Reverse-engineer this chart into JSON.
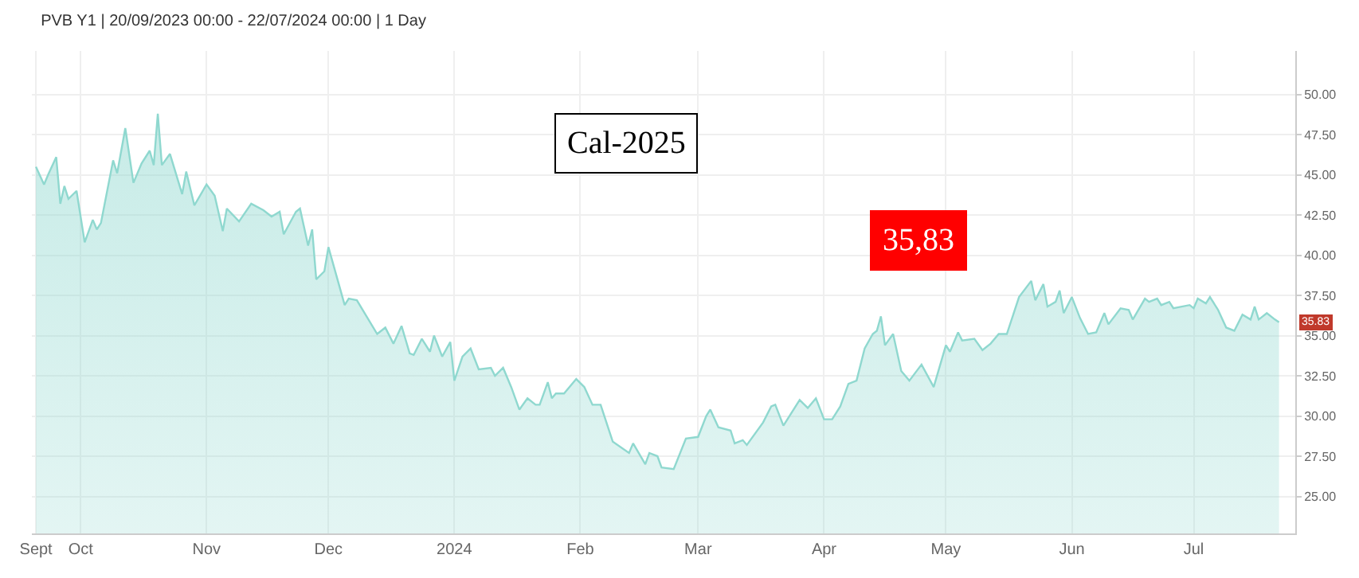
{
  "chart_data": {
    "type": "area",
    "title": "PVB Y1 | 20/09/2023 00:00 - 22/07/2024 00:00 | 1 Day",
    "x": [
      "2023-09-20",
      "2023-09-22",
      "2023-09-23",
      "2023-09-25",
      "2023-09-26",
      "2023-09-27",
      "2023-09-28",
      "2023-09-30",
      "2023-10-02",
      "2023-10-04",
      "2023-10-05",
      "2023-10-06",
      "2023-10-09",
      "2023-10-10",
      "2023-10-12",
      "2023-10-14",
      "2023-10-16",
      "2023-10-18",
      "2023-10-19",
      "2023-10-20",
      "2023-10-21",
      "2023-10-23",
      "2023-10-26",
      "2023-10-27",
      "2023-10-29",
      "2023-11-01",
      "2023-11-03",
      "2023-11-05",
      "2023-11-06",
      "2023-11-09",
      "2023-11-12",
      "2023-11-15",
      "2023-11-17",
      "2023-11-19",
      "2023-11-20",
      "2023-11-23",
      "2023-11-24",
      "2023-11-26",
      "2023-11-27",
      "2023-11-28",
      "2023-11-30",
      "2023-12-01",
      "2023-12-05",
      "2023-12-06",
      "2023-12-08",
      "2023-12-13",
      "2023-12-15",
      "2023-12-17",
      "2023-12-19",
      "2023-12-21",
      "2023-12-22",
      "2023-12-24",
      "2023-12-26",
      "2023-12-27",
      "2023-12-29",
      "2023-12-31",
      "2024-01-01",
      "2024-01-03",
      "2024-01-05",
      "2024-01-07",
      "2024-01-10",
      "2024-01-11",
      "2024-01-13",
      "2024-01-15",
      "2024-01-17",
      "2024-01-19",
      "2024-01-21",
      "2024-01-22",
      "2024-01-24",
      "2024-01-25",
      "2024-01-26",
      "2024-01-28",
      "2024-01-31",
      "2024-02-02",
      "2024-02-04",
      "2024-02-06",
      "2024-02-09",
      "2024-02-13",
      "2024-02-14",
      "2024-02-17",
      "2024-02-18",
      "2024-02-20",
      "2024-02-21",
      "2024-02-24",
      "2024-02-27",
      "2024-03-01",
      "2024-03-03",
      "2024-03-04",
      "2024-03-06",
      "2024-03-09",
      "2024-03-10",
      "2024-03-12",
      "2024-03-13",
      "2024-03-17",
      "2024-03-19",
      "2024-03-20",
      "2024-03-22",
      "2024-03-26",
      "2024-03-28",
      "2024-03-30",
      "2024-04-01",
      "2024-04-03",
      "2024-04-05",
      "2024-04-07",
      "2024-04-09",
      "2024-04-11",
      "2024-04-13",
      "2024-04-14",
      "2024-04-15",
      "2024-04-16",
      "2024-04-18",
      "2024-04-20",
      "2024-04-22",
      "2024-04-25",
      "2024-04-28",
      "2024-05-01",
      "2024-05-02",
      "2024-05-04",
      "2024-05-05",
      "2024-05-08",
      "2024-05-10",
      "2024-05-12",
      "2024-05-14",
      "2024-05-16",
      "2024-05-19",
      "2024-05-22",
      "2024-05-23",
      "2024-05-25",
      "2024-05-26",
      "2024-05-28",
      "2024-05-29",
      "2024-05-30",
      "2024-06-01",
      "2024-06-03",
      "2024-06-05",
      "2024-06-07",
      "2024-06-09",
      "2024-06-10",
      "2024-06-13",
      "2024-06-15",
      "2024-06-16",
      "2024-06-19",
      "2024-06-20",
      "2024-06-22",
      "2024-06-23",
      "2024-06-25",
      "2024-06-26",
      "2024-06-30",
      "2024-07-01",
      "2024-07-02",
      "2024-07-04",
      "2024-07-05",
      "2024-07-07",
      "2024-07-09",
      "2024-07-11",
      "2024-07-13",
      "2024-07-15",
      "2024-07-16",
      "2024-07-17",
      "2024-07-19",
      "2024-07-21",
      "2024-07-22"
    ],
    "series": [
      {
        "color": "#8fd8cf",
        "values": [
          45.5,
          44.4,
          45.0,
          46.1,
          43.2,
          44.3,
          43.5,
          44.0,
          40.8,
          42.2,
          41.6,
          42.0,
          45.9,
          45.1,
          47.9,
          44.5,
          45.7,
          46.5,
          45.6,
          48.8,
          45.6,
          46.3,
          43.8,
          45.2,
          43.1,
          44.4,
          43.7,
          41.5,
          42.9,
          42.1,
          43.2,
          42.8,
          42.4,
          42.7,
          41.3,
          42.7,
          42.9,
          40.6,
          41.6,
          38.5,
          39.0,
          40.5,
          36.9,
          37.3,
          37.2,
          35.1,
          35.5,
          34.5,
          35.6,
          33.9,
          33.8,
          34.8,
          34.0,
          35.0,
          33.7,
          34.6,
          32.2,
          33.7,
          34.2,
          32.9,
          33.0,
          32.5,
          33.0,
          31.8,
          30.4,
          31.1,
          30.7,
          30.7,
          32.1,
          31.1,
          31.4,
          31.4,
          32.3,
          31.8,
          30.7,
          30.7,
          28.4,
          27.7,
          28.3,
          27.0,
          27.7,
          27.5,
          26.8,
          26.7,
          28.6,
          28.7,
          30.0,
          30.4,
          29.3,
          29.1,
          28.3,
          28.5,
          28.2,
          29.6,
          30.6,
          30.7,
          29.4,
          31.0,
          30.5,
          31.1,
          29.8,
          29.8,
          30.6,
          32.0,
          32.2,
          34.2,
          35.1,
          35.3,
          36.2,
          34.4,
          35.1,
          32.8,
          32.2,
          33.2,
          31.8,
          34.4,
          34.0,
          35.2,
          34.7,
          34.8,
          34.1,
          34.5,
          35.1,
          35.1,
          37.4,
          38.4,
          37.2,
          38.2,
          36.8,
          37.1,
          37.8,
          36.4,
          37.4,
          36.1,
          35.1,
          35.2,
          36.4,
          35.7,
          36.7,
          36.6,
          36.0,
          37.3,
          37.1,
          37.3,
          36.9,
          37.1,
          36.7,
          36.9,
          36.7,
          37.3,
          37.0,
          37.4,
          36.6,
          35.5,
          35.3,
          36.3,
          36.0,
          36.8,
          36.0,
          36.4,
          36.0,
          35.83
        ]
      }
    ],
    "xlim": [
      "2023-09-19",
      "2024-07-26"
    ],
    "xticks": [
      {
        "value": "2023-09-20",
        "label": "Sept"
      },
      {
        "value": "2023-10-01",
        "label": "Oct"
      },
      {
        "value": "2023-11-01",
        "label": "Nov"
      },
      {
        "value": "2023-12-01",
        "label": "Dec"
      },
      {
        "value": "2024-01-01",
        "label": "2024"
      },
      {
        "value": "2024-02-01",
        "label": "Feb"
      },
      {
        "value": "2024-03-01",
        "label": "Mar"
      },
      {
        "value": "2024-04-01",
        "label": "Apr"
      },
      {
        "value": "2024-05-01",
        "label": "May"
      },
      {
        "value": "2024-06-01",
        "label": "Jun"
      },
      {
        "value": "2024-07-01",
        "label": "Jul"
      }
    ],
    "ylim": [
      22.7,
      52.7
    ],
    "yticks": [
      {
        "value": 25,
        "label": "25.00"
      },
      {
        "value": 27.5,
        "label": "27.50"
      },
      {
        "value": 30,
        "label": "30.00"
      },
      {
        "value": 32.5,
        "label": "32.50"
      },
      {
        "value": 35,
        "label": "35.00"
      },
      {
        "value": 37.5,
        "label": "37.50"
      },
      {
        "value": 40,
        "label": "40.00"
      },
      {
        "value": 42.5,
        "label": "42.50"
      },
      {
        "value": 45,
        "label": "45.00"
      },
      {
        "value": 47.5,
        "label": "47.50"
      },
      {
        "value": 50,
        "label": "50.00"
      }
    ],
    "annotations": [
      "Cal-2025",
      "35,83",
      {
        "text": "35.83",
        "x": "2024-07-22",
        "y": 35.83
      }
    ],
    "grid": true,
    "marker": "none"
  }
}
